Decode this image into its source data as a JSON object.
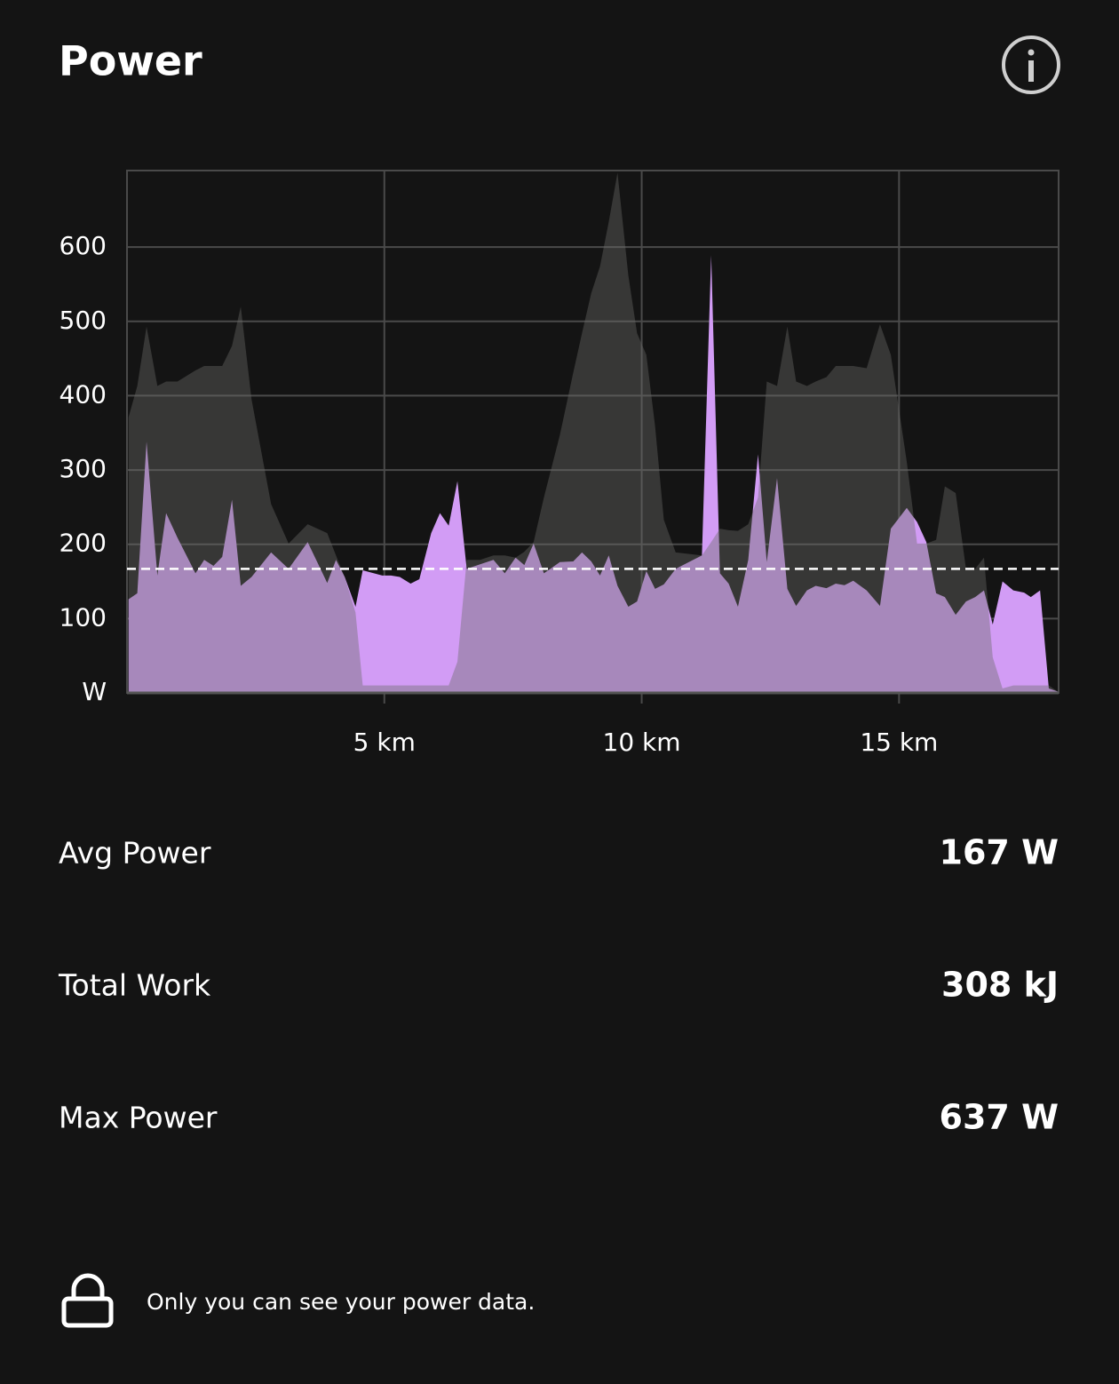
{
  "header": {
    "title": "Power"
  },
  "chart_data": {
    "type": "area",
    "x": [
      0.03,
      0.2,
      0.38,
      0.59,
      0.76,
      0.98,
      1.33,
      1.5,
      1.68,
      1.85,
      2.04,
      2.21,
      2.42,
      2.8,
      3.14,
      3.51,
      3.89,
      4.06,
      4.23,
      4.44,
      4.58,
      4.96,
      5.13,
      5.3,
      5.51,
      5.68,
      5.91,
      6.08,
      6.25,
      6.42,
      6.6,
      6.86,
      7.12,
      7.34,
      7.55,
      7.72,
      7.9,
      8.1,
      8.41,
      8.67,
      8.84,
      9.02,
      9.19,
      9.36,
      9.53,
      9.74,
      9.91,
      10.09,
      10.26,
      10.43,
      10.66,
      11.17,
      11.35,
      11.52,
      11.69,
      11.87,
      12.07,
      12.26,
      12.43,
      12.63,
      12.83,
      13.0,
      13.21,
      13.38,
      13.59,
      13.77,
      13.94,
      14.11,
      14.37,
      14.63,
      14.84,
      15.15,
      15.35,
      15.53,
      15.72,
      15.89,
      16.1,
      16.3,
      16.48,
      16.65,
      16.82,
      17.01,
      17.22,
      17.43,
      17.56,
      17.74,
      17.91,
      18.08
    ],
    "series": [
      {
        "color": "#d29cf5",
        "opacity": 1,
        "values": [
          126,
          134,
          338,
          158,
          242,
          209,
          161,
          179,
          171,
          183,
          260,
          144,
          156,
          189,
          167,
          203,
          148,
          179,
          156,
          116,
          165,
          158,
          158,
          156,
          147,
          153,
          215,
          242,
          225,
          285,
          167,
          173,
          179,
          161,
          182,
          172,
          201,
          161,
          176,
          177,
          189,
          177,
          158,
          185,
          144,
          116,
          123,
          164,
          140,
          146,
          167,
          185,
          589,
          161,
          147,
          116,
          179,
          321,
          176,
          289,
          140,
          117,
          138,
          144,
          141,
          147,
          145,
          151,
          138,
          117,
          221,
          249,
          230,
          203,
          134,
          129,
          105,
          123,
          129,
          138,
          92,
          150,
          138,
          135,
          129,
          138,
          6,
          2
        ]
      },
      {
        "color": "#6c6c68",
        "opacity": 0.41,
        "values": [
          371,
          413,
          493,
          413,
          419,
          419,
          434,
          440,
          440,
          440,
          467,
          520,
          395,
          254,
          201,
          227,
          215,
          185,
          156,
          108,
          10,
          10,
          10,
          10,
          10,
          10,
          10,
          10,
          10,
          42,
          179,
          179,
          185,
          185,
          182,
          190,
          203,
          263,
          347,
          431,
          484,
          538,
          574,
          634,
          700,
          562,
          484,
          455,
          359,
          233,
          189,
          185,
          203,
          221,
          219,
          218,
          227,
          263,
          419,
          413,
          493,
          419,
          413,
          419,
          425,
          440,
          440,
          440,
          437,
          496,
          455,
          311,
          201,
          201,
          206,
          278,
          269,
          167,
          167,
          182,
          48,
          6,
          10,
          10,
          10,
          10,
          10,
          2
        ]
      }
    ],
    "xlim": [
      0,
      18.1
    ],
    "xticks": [
      {
        "value": 5,
        "label": "5 km"
      },
      {
        "value": 10,
        "label": "10 km"
      },
      {
        "value": 15,
        "label": "15 km"
      }
    ],
    "ylim": [
      0,
      703
    ],
    "yticks": [
      {
        "value": 0,
        "label": "W"
      },
      100,
      200,
      300,
      400,
      500,
      600
    ],
    "grid": true,
    "reference_line": 167
  },
  "stats": [
    {
      "label": "Avg Power",
      "value": "167 W"
    },
    {
      "label": "Total Work",
      "value": "308 kJ"
    },
    {
      "label": "Max Power",
      "value": "637 W"
    }
  ],
  "footer": {
    "note": "Only you can see your power data."
  }
}
